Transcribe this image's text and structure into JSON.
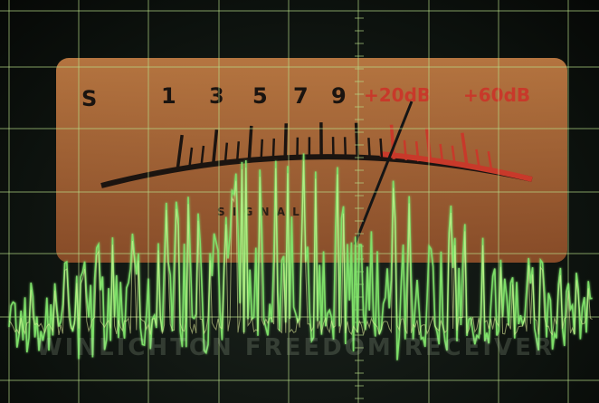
{
  "meter": {
    "scale_s": "S",
    "scale_numbers": [
      "1",
      "3",
      "5",
      "7",
      "9"
    ],
    "scale_plus20": "+20dB",
    "scale_plus60": "+60dB",
    "caption": "S I G N A L",
    "panel_color": "#c9713a",
    "needle_color": "#151515",
    "over_scale_color": "#d23a2a"
  },
  "oscilloscope": {
    "grid_color": "#b9e08a",
    "trace_color": "#7fe36a",
    "trace_highlight": "#e9f7a0"
  },
  "watermark": {
    "text": "WINLICHTON FREEDOM RECEIVER"
  }
}
